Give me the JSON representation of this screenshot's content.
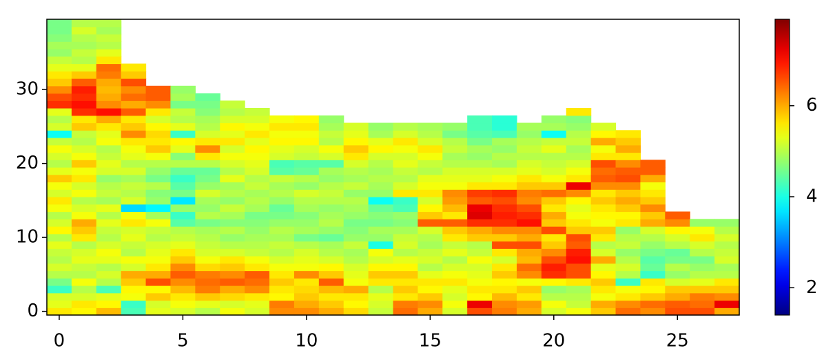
{
  "chart_data": {
    "type": "heatmap",
    "colormap": "jet",
    "xlim": [
      -0.5,
      27.5
    ],
    "ylim": [
      -0.5,
      39.5
    ],
    "xticks": [
      0,
      5,
      10,
      15,
      20,
      25
    ],
    "yticks": [
      0,
      10,
      20,
      30
    ],
    "clim": [
      1.4,
      7.9
    ],
    "cticks": [
      2,
      4,
      6
    ],
    "columns": [
      [
        5.6,
        5.3,
        5.2,
        4.2,
        4.6,
        5.0,
        5.2,
        5.0,
        5.1,
        5.3,
        5.0,
        5.5,
        5.2,
        5.0,
        5.4,
        5.6,
        5.2,
        5.4,
        5.8,
        5.3,
        5.0,
        5.2,
        5.4,
        5.1,
        3.9,
        5.2,
        5.0,
        5.3,
        6.8,
        6.6,
        6.2,
        5.8,
        5.6,
        5.3,
        5.1,
        4.8,
        4.9,
        4.7,
        4.6,
        4.6
      ],
      [
        5.5,
        5.6,
        5.2,
        5.0,
        5.4,
        5.0,
        5.1,
        5.3,
        5.2,
        5.0,
        5.6,
        5.8,
        6.0,
        5.4,
        5.2,
        5.0,
        5.4,
        5.2,
        5.6,
        5.4,
        5.8,
        5.4,
        5.2,
        5.0,
        5.1,
        5.8,
        5.6,
        6.8,
        7.0,
        6.8,
        6.9,
        6.5,
        5.8,
        5.3,
        5.0,
        5.1,
        4.9,
        5.0,
        5.2,
        5.0
      ],
      [
        5.9,
        5.5,
        5.3,
        4.3,
        5.0,
        5.2,
        5.0,
        5.3,
        5.4,
        5.2,
        5.0,
        5.1,
        5.3,
        5.0,
        5.3,
        4.9,
        5.1,
        5.0,
        4.8,
        5.2,
        5.3,
        5.1,
        5.0,
        5.4,
        5.3,
        5.6,
        6.0,
        7.0,
        6.2,
        6.0,
        5.9,
        6.0,
        6.3,
        6.4,
        5.6,
        5.3,
        5.0,
        5.1,
        4.9,
        5.0
      ],
      [
        4.3,
        4.2,
        5.4,
        5.5,
        5.8,
        6.0,
        5.2,
        5.4,
        5.0,
        5.1,
        5.3,
        5.2,
        5.6,
        5.4,
        3.6,
        5.2,
        5.0,
        5.1,
        4.9,
        5.2,
        5.0,
        5.3,
        5.4,
        5.6,
        6.2,
        5.8,
        5.6,
        6.5,
        6.0,
        6.4,
        6.2,
        6.6,
        5.8,
        5.6
      ],
      [
        5.3,
        5.2,
        5.8,
        5.5,
        6.6,
        6.0,
        5.6,
        5.4,
        5.3,
        5.2,
        5.0,
        5.1,
        5.4,
        4.9,
        3.8,
        4.8,
        4.7,
        5.0,
        4.6,
        4.8,
        5.0,
        5.4,
        5.8,
        5.6,
        5.7,
        5.5,
        5.2,
        5.6,
        6.2,
        6.5,
        6.5
      ],
      [
        5.2,
        5.4,
        5.6,
        5.9,
        6.2,
        6.5,
        6.2,
        5.8,
        5.6,
        5.3,
        5.1,
        5.0,
        4.4,
        4.2,
        4.8,
        3.7,
        4.6,
        4.4,
        4.2,
        4.5,
        5.0,
        4.7,
        5.3,
        5.5,
        4.2,
        5.3,
        5.0,
        5.1,
        4.6,
        4.9,
        4.8
      ],
      [
        5.0,
        5.3,
        5.8,
        6.3,
        6.4,
        6.3,
        5.7,
        5.4,
        5.2,
        5.1,
        5.0,
        4.9,
        4.6,
        5.0,
        4.8,
        4.9,
        5.2,
        4.8,
        4.6,
        4.5,
        5.0,
        5.6,
        6.2,
        5.6,
        5.2,
        5.0,
        4.9,
        4.7,
        4.6,
        4.5
      ],
      [
        5.4,
        5.2,
        5.7,
        6.0,
        6.5,
        6.2,
        5.8,
        5.6,
        5.2,
        5.0,
        4.8,
        5.0,
        4.7,
        4.9,
        5.1,
        4.8,
        5.0,
        4.9,
        5.3,
        5.0,
        5.2,
        5.4,
        5.2,
        5.6,
        5.3,
        5.5,
        5.2,
        5.0,
        5.1
      ],
      [
        5.2,
        5.3,
        5.6,
        6.2,
        6.4,
        6.5,
        5.6,
        5.4,
        5.1,
        5.0,
        4.9,
        4.8,
        4.7,
        4.6,
        4.9,
        5.0,
        4.9,
        5.1,
        5.0,
        5.2,
        5.3,
        5.4,
        5.5,
        5.3,
        5.6,
        5.4,
        5.2,
        5.1
      ],
      [
        6.2,
        6.3,
        5.5,
        5.6,
        5.8,
        5.6,
        5.4,
        5.2,
        5.0,
        5.1,
        4.9,
        5.0,
        4.8,
        4.6,
        4.5,
        4.8,
        5.0,
        4.9,
        5.1,
        4.4,
        4.3,
        5.2,
        5.3,
        5.5,
        5.4,
        5.6,
        5.4
      ],
      [
        6.2,
        6.0,
        5.8,
        5.7,
        5.6,
        6.2,
        5.4,
        5.3,
        5.2,
        5.0,
        4.6,
        4.9,
        4.8,
        4.7,
        4.9,
        5.0,
        5.2,
        4.8,
        5.0,
        4.5,
        4.4,
        5.1,
        5.2,
        5.5,
        5.4,
        5.6,
        5.5
      ],
      [
        6.0,
        5.8,
        5.6,
        5.9,
        6.5,
        5.8,
        5.5,
        5.2,
        5.0,
        4.9,
        4.5,
        4.8,
        5.0,
        4.9,
        4.8,
        5.0,
        5.1,
        5.0,
        4.8,
        4.9,
        4.4,
        5.2,
        5.4,
        5.0,
        5.1,
        4.9,
        4.8
      ],
      [
        5.7,
        5.5,
        5.6,
        6.0,
        5.4,
        5.3,
        5.2,
        5.0,
        4.9,
        5.1,
        4.8,
        4.7,
        4.6,
        4.8,
        4.9,
        5.0,
        4.8,
        5.1,
        4.9,
        5.0,
        5.2,
        5.6,
        5.8,
        5.5,
        5.3,
        5.2
      ],
      [
        5.1,
        5.2,
        5.3,
        5.0,
        5.6,
        5.8,
        5.5,
        5.2,
        5.4,
        4.0,
        4.8,
        4.9,
        4.6,
        4.7,
        4.5,
        3.9,
        4.8,
        4.9,
        5.0,
        4.9,
        5.0,
        5.2,
        5.5,
        5.3,
        4.9,
        4.8
      ],
      [
        6.4,
        6.3,
        5.6,
        5.8,
        5.6,
        5.8,
        5.5,
        5.3,
        5.0,
        5.2,
        5.1,
        4.9,
        4.7,
        4.8,
        4.3,
        4.2,
        5.6,
        5.2,
        5.0,
        5.1,
        5.3,
        5.2,
        5.4,
        5.6,
        5.2,
        5.0
      ],
      [
        6.0,
        6.2,
        5.8,
        5.5,
        5.6,
        5.3,
        5.0,
        5.2,
        5.1,
        4.9,
        5.0,
        5.2,
        6.5,
        5.8,
        5.5,
        5.2,
        5.6,
        5.4,
        5.3,
        5.0,
        5.1,
        5.4,
        5.6,
        5.2,
        5.0,
        4.9
      ],
      [
        5.2,
        5.4,
        5.2,
        5.3,
        5.6,
        5.4,
        5.2,
        5.0,
        5.3,
        5.1,
        5.6,
        5.8,
        6.5,
        5.6,
        5.9,
        6.1,
        6.2,
        5.4,
        5.3,
        5.2,
        5.0,
        4.9,
        5.1,
        5.0,
        4.6,
        4.8
      ],
      [
        6.6,
        7.2,
        5.5,
        5.6,
        5.4,
        5.3,
        5.2,
        5.4,
        5.1,
        5.0,
        5.8,
        6.0,
        6.8,
        7.3,
        7.2,
        6.5,
        6.7,
        5.6,
        5.3,
        5.2,
        5.0,
        4.8,
        4.9,
        4.6,
        4.4,
        4.3,
        4.3
      ],
      [
        6.3,
        6.2,
        5.9,
        5.6,
        5.5,
        5.8,
        5.6,
        5.2,
        5.6,
        6.6,
        5.8,
        6.2,
        6.8,
        6.9,
        6.8,
        6.6,
        6.8,
        5.6,
        5.4,
        5.2,
        4.9,
        5.0,
        4.8,
        4.9,
        4.3,
        4.1,
        4.1
      ],
      [
        6.0,
        6.1,
        5.6,
        5.8,
        5.4,
        6.2,
        6.4,
        5.9,
        6.0,
        6.6,
        6.0,
        6.2,
        7.0,
        6.8,
        6.6,
        6.2,
        6.3,
        5.8,
        5.6,
        5.3,
        5.2,
        5.0,
        5.1,
        5.0,
        4.8,
        4.9
      ],
      [
        5.2,
        5.4,
        5.0,
        4.8,
        5.5,
        6.8,
        6.9,
        6.6,
        6.2,
        5.8,
        5.6,
        6.6,
        5.8,
        6.0,
        5.6,
        5.8,
        6.4,
        5.8,
        5.4,
        5.2,
        5.1,
        5.0,
        5.3,
        5.1,
        3.9,
        4.9,
        4.8
      ],
      [
        5.4,
        5.1,
        5.0,
        4.9,
        5.6,
        6.6,
        6.6,
        7.0,
        6.9,
        6.5,
        6.6,
        5.8,
        5.6,
        5.4,
        5.3,
        5.5,
        6.2,
        7.2,
        5.6,
        5.4,
        5.2,
        5.0,
        4.9,
        5.1,
        5.0,
        4.8,
        4.7,
        5.6
      ],
      [
        5.8,
        6.0,
        5.4,
        5.6,
        5.8,
        5.5,
        5.3,
        6.0,
        5.2,
        5.0,
        5.6,
        5.8,
        5.4,
        5.5,
        5.6,
        5.8,
        5.6,
        6.2,
        6.5,
        6.4,
        6.6,
        5.6,
        5.4,
        6.0,
        5.5,
        5.2
      ],
      [
        6.4,
        6.2,
        5.6,
        5.4,
        4.2,
        5.0,
        5.2,
        5.0,
        4.8,
        5.1,
        5.0,
        4.8,
        5.6,
        5.5,
        5.8,
        6.0,
        5.8,
        6.2,
        6.6,
        6.5,
        6.2,
        5.6,
        6.0,
        5.8,
        5.6
      ],
      [
        6.2,
        6.4,
        5.8,
        5.5,
        5.6,
        4.2,
        4.5,
        4.4,
        4.6,
        4.8,
        5.0,
        5.2,
        6.0,
        5.8,
        6.2,
        5.8,
        5.6,
        5.4,
        6.0,
        6.5,
        6.5
      ],
      [
        6.6,
        6.5,
        6.0,
        5.8,
        5.2,
        4.8,
        5.0,
        4.6,
        4.5,
        5.0,
        5.2,
        5.5,
        6.2,
        6.5
      ],
      [
        6.6,
        6.4,
        6.3,
        5.8,
        5.3,
        5.0,
        4.8,
        4.6,
        5.0,
        5.2,
        5.6,
        5.4,
        4.8
      ],
      [
        6.0,
        7.2,
        6.2,
        5.8,
        5.6,
        5.0,
        4.9,
        5.2,
        5.1,
        5.0,
        5.2,
        5.0,
        4.8
      ]
    ]
  }
}
